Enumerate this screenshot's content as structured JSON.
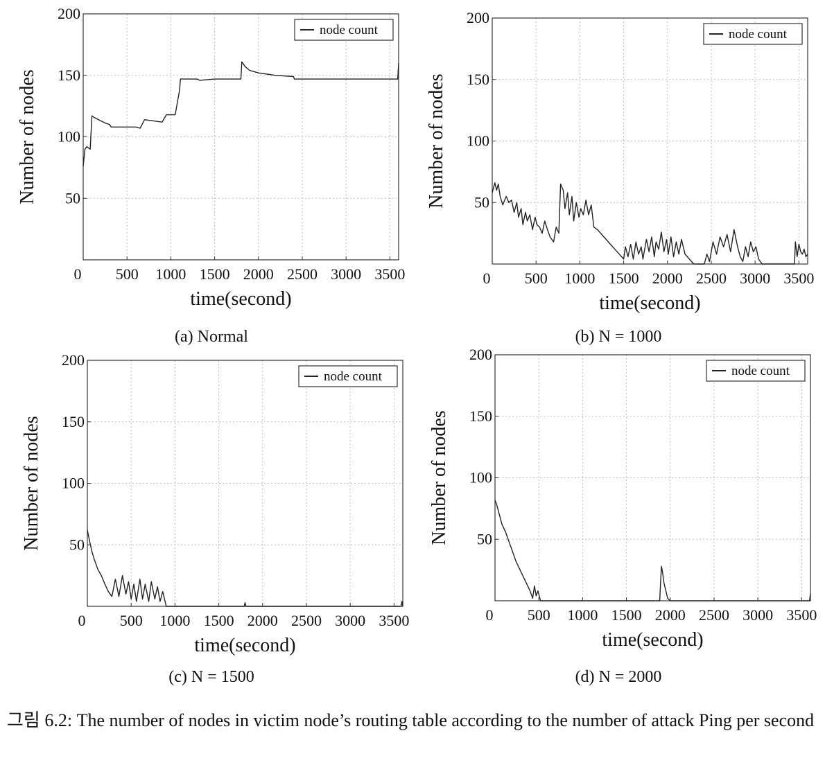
{
  "chart_data": [
    {
      "type": "line",
      "caption": "(a) Normal",
      "xlabel": "time(second)",
      "ylabel": "Number of nodes",
      "xlim": [
        0,
        3600
      ],
      "ylim": [
        0,
        200
      ],
      "xticks": [
        0,
        500,
        1000,
        1500,
        2000,
        2500,
        3000,
        3500
      ],
      "yticks": [
        50,
        100,
        150,
        200
      ],
      "grid": true,
      "legend": "top-right",
      "series": [
        {
          "name": "node count",
          "x": [
            0,
            20,
            40,
            80,
            100,
            120,
            200,
            260,
            300,
            320,
            380,
            450,
            600,
            650,
            700,
            900,
            950,
            1050,
            1100,
            1110,
            1300,
            1330,
            1500,
            1800,
            1810,
            1850,
            1900,
            2000,
            2200,
            2400,
            2410,
            2800,
            3000,
            3590,
            3600
          ],
          "y": [
            76,
            90,
            92,
            90,
            117,
            116,
            113,
            111,
            110,
            108,
            108,
            108,
            108,
            107,
            114,
            112,
            118,
            118,
            138,
            147,
            147,
            146,
            147,
            147,
            161,
            157,
            154,
            152,
            150,
            149,
            147,
            147,
            147,
            147,
            160
          ]
        }
      ]
    },
    {
      "type": "line",
      "caption": "(b) N = 1000",
      "xlabel": "time(second)",
      "ylabel": "Number of nodes",
      "xlim": [
        0,
        3600
      ],
      "ylim": [
        0,
        200
      ],
      "xticks": [
        0,
        500,
        1000,
        1500,
        2000,
        2500,
        3000,
        3500
      ],
      "yticks": [
        50,
        100,
        150,
        200
      ],
      "grid": true,
      "legend": "top-right",
      "series": [
        {
          "name": "node count",
          "x": [
            0,
            30,
            50,
            70,
            90,
            120,
            160,
            190,
            220,
            250,
            280,
            300,
            330,
            350,
            380,
            400,
            430,
            460,
            490,
            510,
            540,
            570,
            600,
            630,
            660,
            700,
            730,
            760,
            780,
            810,
            830,
            860,
            880,
            910,
            930,
            960,
            990,
            1010,
            1040,
            1070,
            1100,
            1130,
            1160,
            1200,
            1250,
            1300,
            1350,
            1400,
            1450,
            1500,
            1520,
            1550,
            1580,
            1610,
            1640,
            1670,
            1700,
            1720,
            1760,
            1790,
            1820,
            1850,
            1870,
            1900,
            1930,
            1960,
            1990,
            2010,
            2040,
            2070,
            2100,
            2130,
            2160,
            2200,
            2250,
            2300,
            2330,
            2360,
            2390,
            2420,
            2450,
            2480,
            2520,
            2560,
            2600,
            2640,
            2680,
            2720,
            2760,
            2800,
            2830,
            2860,
            2890,
            2920,
            2950,
            2980,
            3010,
            3040,
            3080,
            3100,
            3200,
            3300,
            3400,
            3450,
            3460,
            3480,
            3500,
            3520,
            3540,
            3560,
            3580,
            3600
          ],
          "y": [
            58,
            66,
            60,
            65,
            55,
            48,
            55,
            50,
            52,
            42,
            50,
            38,
            45,
            32,
            42,
            35,
            40,
            28,
            38,
            32,
            30,
            25,
            35,
            28,
            22,
            18,
            30,
            25,
            65,
            60,
            45,
            58,
            40,
            55,
            35,
            50,
            38,
            45,
            40,
            52,
            40,
            48,
            30,
            28,
            24,
            20,
            16,
            12,
            8,
            4,
            14,
            6,
            16,
            4,
            18,
            8,
            14,
            4,
            20,
            10,
            22,
            6,
            18,
            12,
            26,
            10,
            20,
            8,
            22,
            6,
            18,
            8,
            20,
            8,
            4,
            0,
            0,
            0,
            0,
            0,
            8,
            2,
            18,
            8,
            22,
            14,
            24,
            10,
            28,
            14,
            6,
            2,
            14,
            6,
            18,
            10,
            14,
            4,
            0,
            0,
            0,
            0,
            0,
            0,
            18,
            6,
            16,
            10,
            8,
            12,
            6,
            8
          ]
        }
      ]
    },
    {
      "type": "line",
      "caption": "(c) N = 1500",
      "xlabel": "time(second)",
      "ylabel": "Number of nodes",
      "xlim": [
        0,
        3600
      ],
      "ylim": [
        0,
        200
      ],
      "xticks": [
        0,
        500,
        1000,
        1500,
        2000,
        2500,
        3000,
        3500
      ],
      "yticks": [
        50,
        100,
        150,
        200
      ],
      "grid": true,
      "legend": "top-right",
      "series": [
        {
          "name": "node count",
          "x": [
            0,
            20,
            50,
            80,
            120,
            160,
            200,
            240,
            280,
            320,
            360,
            400,
            440,
            470,
            500,
            530,
            560,
            600,
            630,
            660,
            700,
            730,
            770,
            800,
            830,
            860,
            900,
            950,
            1000,
            1500,
            1790,
            1800,
            1810,
            2000,
            3000,
            3580,
            3590,
            3600
          ],
          "y": [
            62,
            55,
            45,
            38,
            30,
            25,
            18,
            12,
            8,
            22,
            8,
            25,
            10,
            20,
            6,
            18,
            4,
            22,
            6,
            18,
            4,
            20,
            6,
            16,
            4,
            12,
            0,
            0,
            0,
            0,
            0,
            3,
            0,
            0,
            0,
            0,
            4,
            0
          ]
        }
      ]
    },
    {
      "type": "line",
      "caption": "(d) N = 2000",
      "xlabel": "time(second)",
      "ylabel": "Number of nodes",
      "xlim": [
        0,
        3600
      ],
      "ylim": [
        0,
        200
      ],
      "xticks": [
        0,
        500,
        1000,
        1500,
        2000,
        2500,
        3000,
        3500
      ],
      "yticks": [
        50,
        100,
        150,
        200
      ],
      "grid": true,
      "legend": "top-right",
      "series": [
        {
          "name": "node count",
          "x": [
            0,
            20,
            50,
            80,
            120,
            160,
            200,
            240,
            280,
            320,
            360,
            400,
            430,
            450,
            470,
            490,
            520,
            1000,
            1500,
            1880,
            1890,
            1900,
            1910,
            1930,
            1950,
            1970,
            2000,
            3000,
            3590,
            3600
          ],
          "y": [
            82,
            78,
            70,
            62,
            56,
            48,
            40,
            32,
            26,
            20,
            14,
            8,
            2,
            12,
            4,
            8,
            0,
            0,
            0,
            0,
            16,
            28,
            24,
            14,
            8,
            2,
            0,
            0,
            0,
            6
          ]
        }
      ]
    }
  ],
  "figure_caption": "그림 6.2: The number of nodes in victim node’s routing table according to the number of attack Ping per second"
}
